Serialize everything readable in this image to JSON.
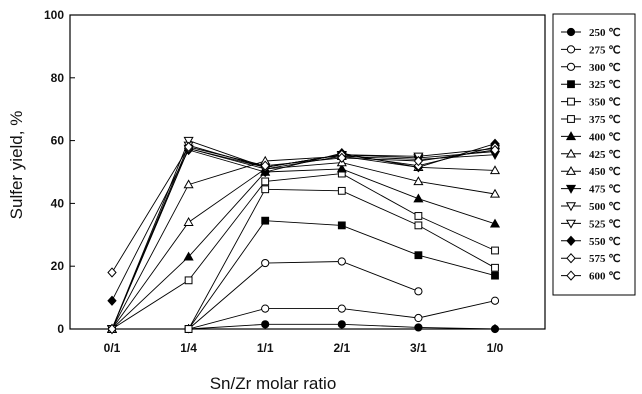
{
  "chart_data": {
    "type": "line",
    "title": "",
    "xlabel": "Sn/Zr molar ratio",
    "ylabel": "Sulfer yield, %",
    "categories": [
      "0/1",
      "1/4",
      "1/1",
      "2/1",
      "3/1",
      "1/0"
    ],
    "ylim": [
      0,
      100
    ],
    "yticks": [
      0,
      20,
      40,
      60,
      80,
      100
    ],
    "grid": false,
    "legend_position": "right",
    "series": [
      {
        "name": "250 ℃",
        "marker": "circle",
        "filled": true,
        "values": [
          0,
          0,
          1.5,
          1.5,
          0.5,
          0
        ]
      },
      {
        "name": "275 ℃",
        "marker": "circle",
        "filled": false,
        "values": [
          0,
          0,
          6.5,
          6.5,
          3.5,
          9
        ]
      },
      {
        "name": "300 ℃",
        "marker": "circle",
        "filled": false,
        "values": [
          0,
          0,
          21,
          21.5,
          12,
          null
        ]
      },
      {
        "name": "325 ℃",
        "marker": "square",
        "filled": true,
        "values": [
          0,
          0,
          34.5,
          33,
          23.5,
          17
        ]
      },
      {
        "name": "350 ℃",
        "marker": "square",
        "filled": false,
        "values": [
          0,
          0,
          44.5,
          44,
          33,
          19.5
        ]
      },
      {
        "name": "375 ℃",
        "marker": "square",
        "filled": false,
        "values": [
          0,
          15.5,
          47,
          49.5,
          36,
          25
        ]
      },
      {
        "name": "400 ℃",
        "marker": "triangle-up",
        "filled": true,
        "values": [
          0,
          23,
          50,
          51,
          41.5,
          33.5
        ]
      },
      {
        "name": "425 ℃",
        "marker": "triangle-up",
        "filled": false,
        "values": [
          0,
          34,
          51,
          53,
          47,
          43
        ]
      },
      {
        "name": "450 ℃",
        "marker": "triangle-up",
        "filled": false,
        "values": [
          0,
          46,
          53.5,
          55,
          51.5,
          50.5
        ]
      },
      {
        "name": "475 ℃",
        "marker": "triangle-down",
        "filled": true,
        "values": [
          0,
          57.5,
          51,
          55,
          54,
          55.5
        ]
      },
      {
        "name": "500 ℃",
        "marker": "triangle-down",
        "filled": false,
        "values": [
          0,
          58.5,
          51.5,
          55.5,
          54.5,
          56.5
        ]
      },
      {
        "name": "525 ℃",
        "marker": "triangle-down",
        "filled": false,
        "values": [
          0,
          60,
          51.5,
          55.5,
          55,
          57.5
        ]
      },
      {
        "name": "550 ℃",
        "marker": "diamond",
        "filled": true,
        "values": [
          9,
          57,
          50,
          56,
          51.5,
          59
        ]
      },
      {
        "name": "575 ℃",
        "marker": "diamond",
        "filled": false,
        "values": [
          0,
          57.5,
          51.5,
          55.5,
          52,
          58
        ]
      },
      {
        "name": "600 ℃",
        "marker": "diamond",
        "filled": false,
        "values": [
          18,
          58,
          52,
          54.5,
          53.5,
          57
        ]
      }
    ]
  }
}
